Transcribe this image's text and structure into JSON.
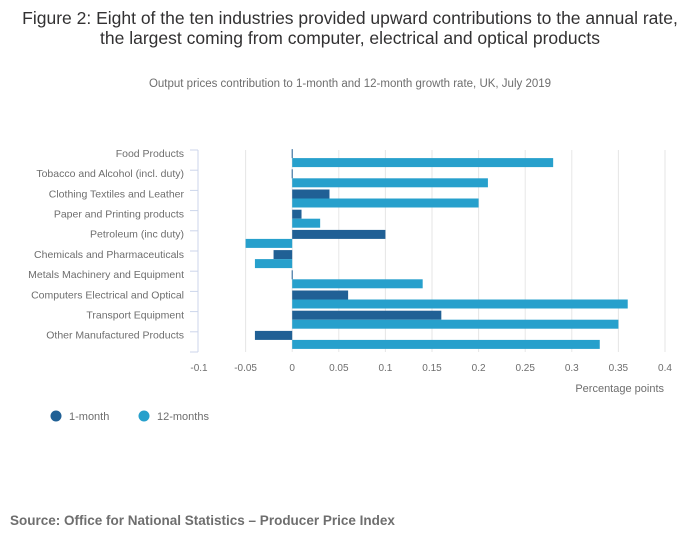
{
  "title": "Figure 2: Eight of the ten industries provided upward contributions to the annual rate, the largest coming from computer, electrical and optical products",
  "subtitle": "Output prices contribution to 1-month and 12-month growth rate, UK, July 2019",
  "source": "Source: Office for National Statistics – Producer Price Index",
  "chart_data": {
    "type": "bar",
    "orientation": "horizontal",
    "title": "Figure 2: Eight of the ten industries provided upward contributions to the annual rate, the largest coming from computer, electrical and optical products",
    "subtitle": "Output prices contribution to 1-month and 12-month growth rate, UK, July 2019",
    "categories": [
      "Food Products",
      "Tobacco and Alcohol (incl. duty)",
      "Clothing Textiles and Leather",
      "Paper and Printing products",
      "Petroleum (inc duty)",
      "Chemicals and Pharmaceuticals",
      "Metals Machinery and Equipment",
      "Computers Electrical and Optical",
      "Transport Equipment",
      "Other Manufactured Products"
    ],
    "series": [
      {
        "name": "1-month",
        "color": "#206095",
        "values": [
          0.0,
          0.0,
          0.04,
          0.01,
          0.1,
          -0.02,
          0.0,
          0.06,
          0.16,
          -0.04
        ]
      },
      {
        "name": "12-months",
        "color": "#27a0cc",
        "values": [
          0.28,
          0.21,
          0.2,
          0.03,
          -0.05,
          -0.04,
          0.14,
          0.36,
          0.35,
          0.33
        ]
      }
    ],
    "xlabel": "Percentage points",
    "ylabel": "",
    "xlim": [
      -0.1,
      0.4
    ],
    "xticks": [
      "-0.1",
      "-0.05",
      "0",
      "0.05",
      "0.1",
      "0.15",
      "0.2",
      "0.25",
      "0.3",
      "0.35",
      "0.4"
    ],
    "tick_values": [
      -0.1,
      -0.05,
      0,
      0.05,
      0.1,
      0.15,
      0.2,
      0.25,
      0.3,
      0.35,
      0.4
    ],
    "grid": true,
    "legend": "bottom-left"
  }
}
